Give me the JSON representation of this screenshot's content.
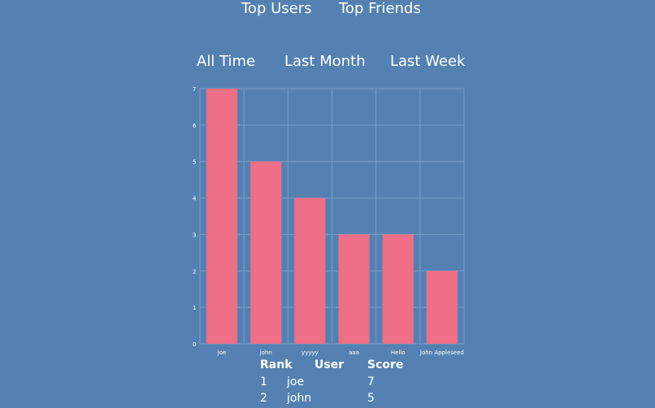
{
  "nav": {
    "tabs": [
      {
        "label": "Top Users"
      },
      {
        "label": "Top Friends"
      }
    ]
  },
  "ranges": [
    {
      "label": "All Time"
    },
    {
      "label": "Last Month"
    },
    {
      "label": "Last Week"
    }
  ],
  "chart_data": {
    "type": "bar",
    "categories": [
      "joe",
      "john",
      "yyyyy",
      "aaa",
      "Hello",
      "John Appleseed"
    ],
    "values": [
      7,
      5,
      4,
      3,
      3,
      2
    ],
    "ylim": [
      0,
      7
    ],
    "yticks": [
      "0",
      "1",
      "2",
      "3",
      "4",
      "5",
      "6",
      "7"
    ],
    "grid": true,
    "bar_color": "#ef6f86",
    "grid_color": "#7ba0c8"
  },
  "table": {
    "headers": {
      "rank": "Rank",
      "user": "User",
      "score": "Score"
    },
    "rows": [
      {
        "rank": "1",
        "user": "joe",
        "score": "7"
      },
      {
        "rank": "2",
        "user": "john",
        "score": "5"
      }
    ]
  },
  "colors": {
    "background": "#5481b2",
    "text": "#ffffff"
  }
}
